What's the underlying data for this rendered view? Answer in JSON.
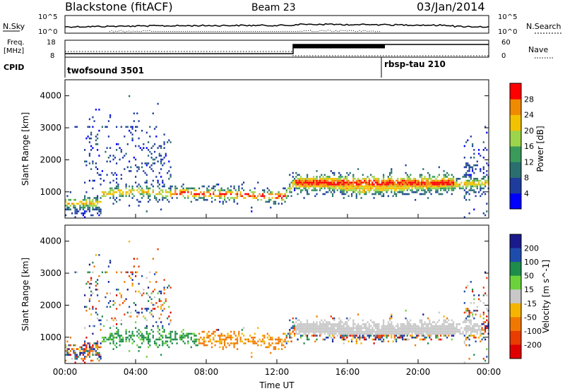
{
  "header": {
    "title": "Blackstone (fitACF)",
    "beam": "Beam 23",
    "date": "03/Jan/2014"
  },
  "noise_panel": {
    "left_label": "N.Sky",
    "right_label": "N.Search",
    "left_ticks": [
      "10^5",
      "10^0"
    ],
    "right_ticks": [
      "10^5",
      "10^0"
    ]
  },
  "freq_panel": {
    "left_label_1": "Freq.",
    "left_label_2": "[MHz]",
    "left_ticks": [
      "18",
      "8"
    ],
    "right_label": "Nave",
    "right_ticks": [
      "60",
      "0"
    ]
  },
  "cpid_panel": {
    "label": "CPID",
    "entries": [
      {
        "name": "twofsound 3501",
        "start_hour": 0
      },
      {
        "name": "rbsp-tau 210",
        "start_hour": 17.9
      }
    ]
  },
  "x_axis": {
    "label": "Time UT",
    "ticks": [
      "00:00",
      "04:00",
      "08:00",
      "12:00",
      "16:00",
      "20:00",
      "00:00"
    ]
  },
  "chart_data": [
    {
      "type": "heatmap",
      "name": "power",
      "xlabel": "Time UT",
      "ylabel": "Slant Range [km]",
      "xlim": [
        0,
        24
      ],
      "ylim": [
        180,
        4500
      ],
      "yticks": [
        "1000",
        "2000",
        "3000",
        "4000"
      ],
      "colorbar": {
        "label": "Power [dB]",
        "ticks": [
          "4",
          "8",
          "12",
          "16",
          "20",
          "24",
          "28"
        ],
        "colors": [
          "#0000ff",
          "#1e3c9c",
          "#2a6e6e",
          "#3a9a5a",
          "#9cd44a",
          "#f2c200",
          "#f08a00",
          "#ff0000"
        ]
      },
      "features": [
        {
          "desc": "main band",
          "x": [
            3,
            12.5
          ],
          "range_km": [
            700,
            1100
          ],
          "power_db": 24
        },
        {
          "desc": "post-midday band",
          "x": [
            12.8,
            22
          ],
          "range_km": [
            900,
            1450
          ],
          "power_db": 28
        },
        {
          "desc": "morning spread",
          "x": [
            1,
            6
          ],
          "range_km": [
            1000,
            3000
          ],
          "power_db": 6
        },
        {
          "desc": "near range",
          "x": [
            0,
            2
          ],
          "range_km": [
            300,
            600
          ],
          "power_db": 20
        }
      ]
    },
    {
      "type": "heatmap",
      "name": "velocity",
      "xlabel": "Time UT",
      "ylabel": "Slant Range [km]",
      "xlim": [
        0,
        24
      ],
      "ylim": [
        180,
        4500
      ],
      "yticks": [
        "1000",
        "2000",
        "3000",
        "4000"
      ],
      "colorbar": {
        "label": "Velocity [m s^-1]",
        "ticks": [
          "200",
          "100",
          "50",
          "15",
          "-15",
          "-50",
          "-100",
          "-200"
        ],
        "colors": [
          "#1a1a8c",
          "#1e4caa",
          "#1e8c4a",
          "#6bd23c",
          "#c8c8c8",
          "#f5b400",
          "#f07800",
          "#e83c00",
          "#e00000"
        ]
      },
      "features": [
        {
          "desc": "ground scatter band",
          "x": [
            13,
            23.5
          ],
          "range_km": [
            1100,
            1500
          ],
          "velocity": 0
        },
        {
          "desc": "negative velocity region",
          "x": [
            7.5,
            12.5
          ],
          "range_km": [
            700,
            1150
          ],
          "velocity": -50
        },
        {
          "desc": "positive velocity region",
          "x": [
            2,
            7.5
          ],
          "range_km": [
            800,
            1200
          ],
          "velocity": 50
        }
      ]
    }
  ]
}
